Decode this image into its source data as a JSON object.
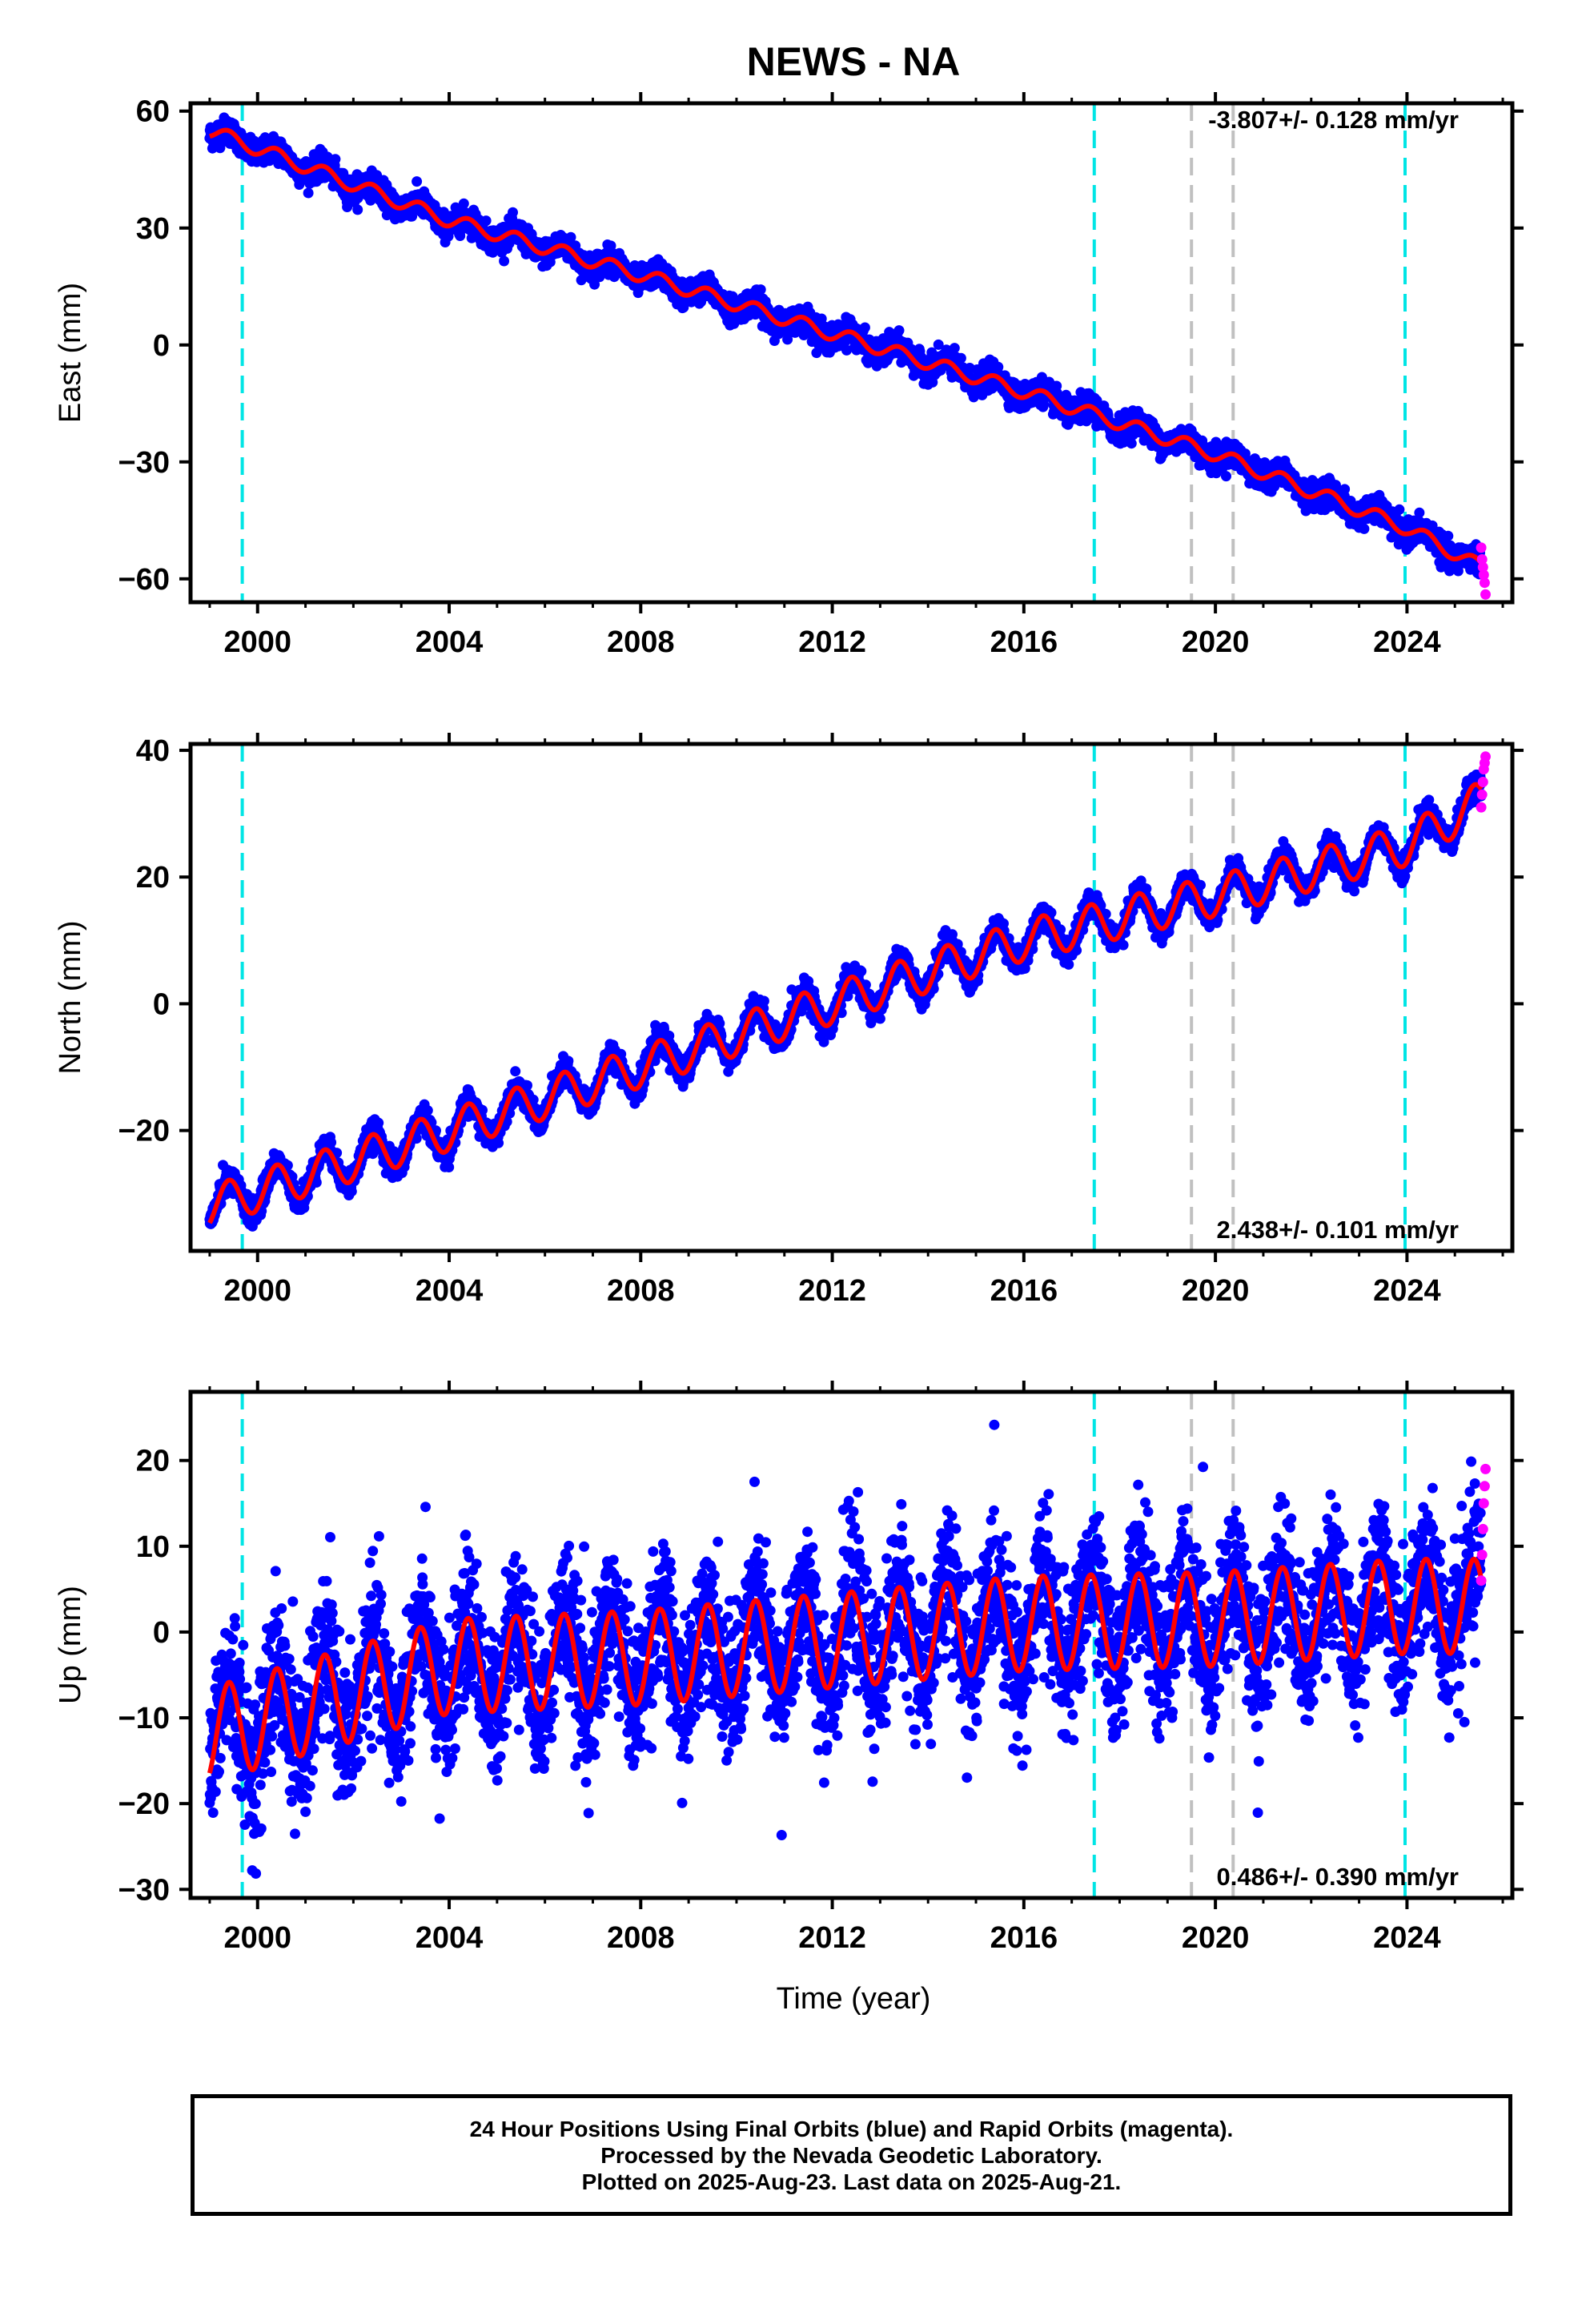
{
  "title": "NEWS - NA",
  "xlabel": "Time (year)",
  "xlim": [
    1998.6,
    2026.2
  ],
  "x_ticks": [
    2000,
    2004,
    2008,
    2012,
    2016,
    2020,
    2024
  ],
  "cyan_vlines": [
    1999.68,
    2017.47,
    2023.96
  ],
  "gray_vlines": [
    2019.5,
    2020.37
  ],
  "colors": {
    "final": "#0000ff",
    "rapid": "#ff00ff",
    "model": "#ff0000",
    "cyan": "#00e5e5",
    "gray": "#c0c0c0"
  },
  "footer": [
    "24 Hour Positions Using Final Orbits (blue) and Rapid Orbits (magenta).",
    "Processed by the Nevada Geodetic Laboratory.",
    "Plotted on 2025-Aug-23. Last data on 2025-Aug-21."
  ],
  "chart_data": [
    {
      "type": "scatter",
      "component": "east",
      "ylabel": "East (mm)",
      "ylim": [
        -66,
        62
      ],
      "y_ticks": [
        60,
        30,
        0,
        -30,
        -60
      ],
      "rate": "-3.807+/- 0.128 mm/yr",
      "rate_position": "top-right",
      "series": [
        {
          "name": "Final Orbits (blue)",
          "style": "points",
          "start": 1999.0,
          "end": 2025.55,
          "start_value": 55,
          "end_value": -57,
          "seasonal_amplitude": 1.8,
          "scatter_mm": 1.6
        },
        {
          "name": "Rapid Orbits (magenta)",
          "style": "points",
          "start": 2025.55,
          "end": 2025.64,
          "values": [
            -52,
            -55,
            -57,
            -59,
            -61,
            -64
          ]
        },
        {
          "name": "model",
          "style": "line",
          "samples": [
            [
              1999.0,
              55
            ],
            [
              2004.0,
              32
            ],
            [
              2008.0,
              18
            ],
            [
              2012.0,
              3
            ],
            [
              2016.0,
              -12
            ],
            [
              2020.0,
              -28
            ],
            [
              2024.0,
              -47
            ],
            [
              2025.55,
              -57
            ]
          ],
          "seasonal_amplitude": 1.8
        }
      ]
    },
    {
      "type": "scatter",
      "component": "north",
      "ylabel": "North (mm)",
      "ylim": [
        -39,
        41
      ],
      "y_ticks": [
        40,
        20,
        0,
        -20
      ],
      "rate": "2.438+/- 0.101 mm/yr",
      "rate_position": "bottom-right",
      "series": [
        {
          "name": "Final Orbits (blue)",
          "style": "points",
          "start": 1999.0,
          "end": 2025.55,
          "start_value": -32,
          "end_value": 32,
          "seasonal_amplitude": 3.2,
          "scatter_mm": 1.0
        },
        {
          "name": "Rapid Orbits (magenta)",
          "style": "points",
          "start": 2025.55,
          "end": 2025.64,
          "values": [
            31,
            33,
            35,
            37,
            38,
            39
          ]
        },
        {
          "name": "model",
          "style": "line",
          "samples": [
            [
              1999.0,
              -32
            ],
            [
              2004.0,
              -20
            ],
            [
              2008.0,
              -10
            ],
            [
              2012.0,
              0
            ],
            [
              2016.0,
              10
            ],
            [
              2020.0,
              17
            ],
            [
              2024.0,
              25
            ],
            [
              2025.55,
              32
            ]
          ],
          "seasonal_amplitude": 3.2
        }
      ]
    },
    {
      "type": "scatter",
      "component": "up",
      "ylabel": "Up (mm)",
      "ylim": [
        -31,
        28
      ],
      "y_ticks": [
        20,
        10,
        0,
        -10,
        -20,
        -30
      ],
      "rate": "0.486+/- 0.390 mm/yr",
      "rate_position": "bottom-right",
      "series": [
        {
          "name": "Final Orbits (blue)",
          "style": "points",
          "start": 1999.0,
          "end": 2025.55,
          "start_value": -10,
          "end_value": 3,
          "seasonal_amplitude": 5.5,
          "scatter_mm": 4.2
        },
        {
          "name": "Rapid Orbits (magenta)",
          "style": "points",
          "start": 2025.55,
          "end": 2025.64,
          "values": [
            6,
            9,
            12,
            15,
            17,
            19
          ]
        },
        {
          "name": "model",
          "style": "line",
          "samples": [
            [
              1999.0,
              -12
            ],
            [
              2004.0,
              -4
            ],
            [
              2008.0,
              -3
            ],
            [
              2012.0,
              -1
            ],
            [
              2016.0,
              1
            ],
            [
              2020.0,
              1.5
            ],
            [
              2024.0,
              3
            ],
            [
              2025.55,
              3
            ]
          ],
          "seasonal_amplitude": 5.5
        }
      ]
    }
  ]
}
